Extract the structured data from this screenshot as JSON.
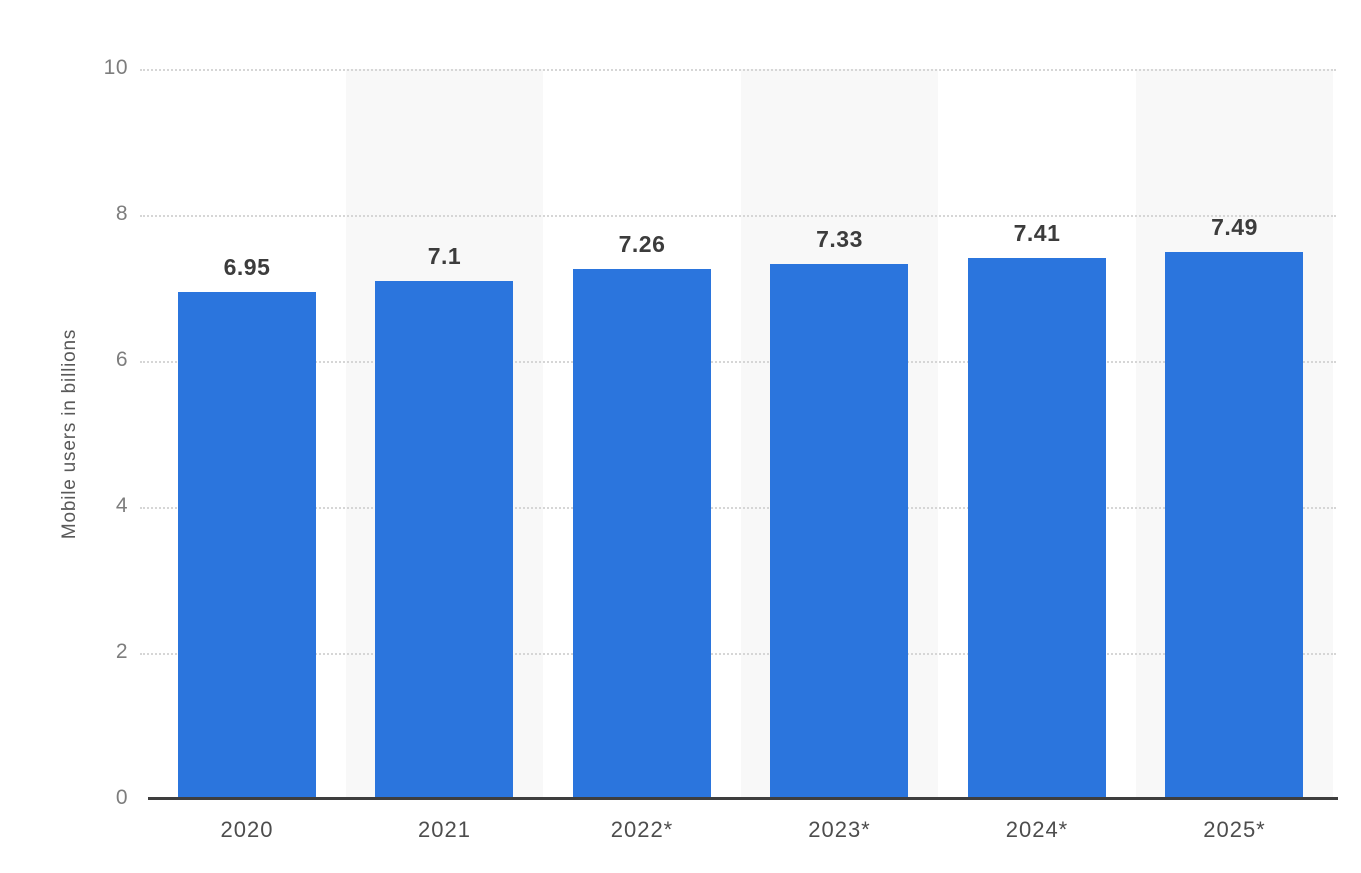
{
  "chart_data": {
    "type": "bar",
    "title": "",
    "xlabel": "",
    "ylabel": "Mobile users in billions",
    "categories": [
      "2020",
      "2021",
      "2022*",
      "2023*",
      "2024*",
      "2025*"
    ],
    "values": [
      6.95,
      7.1,
      7.26,
      7.33,
      7.41,
      7.49
    ],
    "value_labels": [
      "6.95",
      "7.1",
      "7.26",
      "7.33",
      "7.41",
      "7.49"
    ],
    "ylim": [
      0,
      10
    ],
    "yticks": [
      0,
      2,
      4,
      6,
      8,
      10
    ],
    "legend": "none",
    "grid": "horizontal-dotted",
    "banded_columns": [
      1,
      3,
      5
    ],
    "colors": {
      "bar": "#2b75dd",
      "column_band": "#f8f8f8",
      "gridline": "#d6d6d6",
      "axis_line": "#3e3e3e",
      "value_label": "#3c3c3c",
      "tick_label": "#7d7d7d",
      "x_label": "#4d4d4d",
      "background": "#ffffff"
    }
  }
}
